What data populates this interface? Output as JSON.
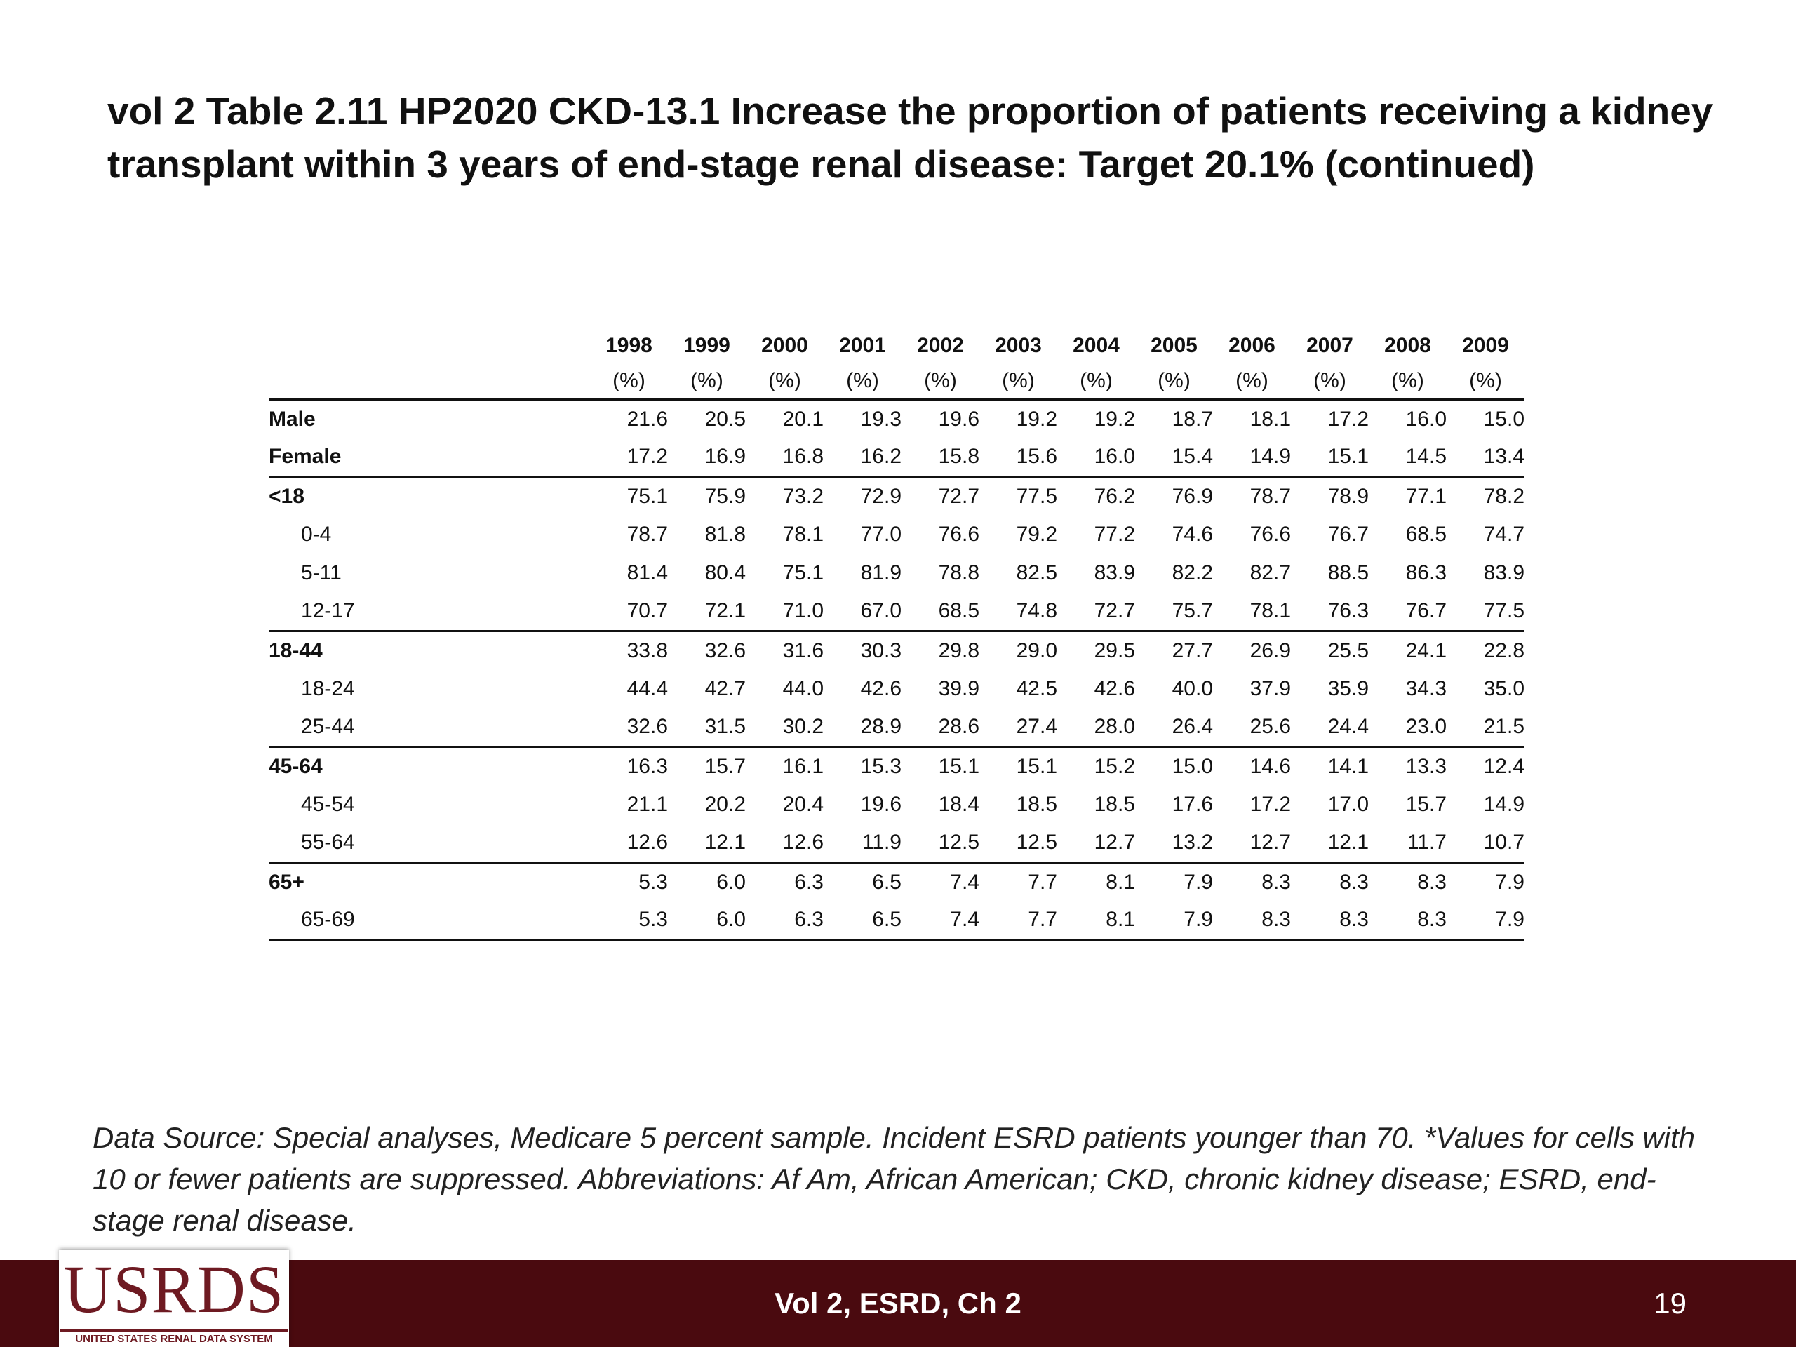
{
  "title": "vol 2 Table 2.11 HP2020 CKD-13.1 Increase the proportion of patients receiving a kidney transplant within 3 years of end-stage renal disease: Target 20.1% (continued)",
  "table": {
    "years": [
      "1998",
      "1999",
      "2000",
      "2001",
      "2002",
      "2003",
      "2004",
      "2005",
      "2006",
      "2007",
      "2008",
      "2009"
    ],
    "unit": "(%)",
    "rows": [
      {
        "label": "Male",
        "bold": true,
        "sep": false,
        "values": [
          "21.6",
          "20.5",
          "20.1",
          "19.3",
          "19.6",
          "19.2",
          "19.2",
          "18.7",
          "18.1",
          "17.2",
          "16.0",
          "15.0"
        ]
      },
      {
        "label": "Female",
        "bold": true,
        "sep": false,
        "values": [
          "17.2",
          "16.9",
          "16.8",
          "16.2",
          "15.8",
          "15.6",
          "16.0",
          "15.4",
          "14.9",
          "15.1",
          "14.5",
          "13.4"
        ]
      },
      {
        "label": "<18",
        "bold": true,
        "sep": true,
        "values": [
          "75.1",
          "75.9",
          "73.2",
          "72.9",
          "72.7",
          "77.5",
          "76.2",
          "76.9",
          "78.7",
          "78.9",
          "77.1",
          "78.2"
        ]
      },
      {
        "label": "0-4",
        "bold": false,
        "sep": false,
        "values": [
          "78.7",
          "81.8",
          "78.1",
          "77.0",
          "76.6",
          "79.2",
          "77.2",
          "74.6",
          "76.6",
          "76.7",
          "68.5",
          "74.7"
        ]
      },
      {
        "label": "5-11",
        "bold": false,
        "sep": false,
        "values": [
          "81.4",
          "80.4",
          "75.1",
          "81.9",
          "78.8",
          "82.5",
          "83.9",
          "82.2",
          "82.7",
          "88.5",
          "86.3",
          "83.9"
        ]
      },
      {
        "label": "12-17",
        "bold": false,
        "sep": false,
        "values": [
          "70.7",
          "72.1",
          "71.0",
          "67.0",
          "68.5",
          "74.8",
          "72.7",
          "75.7",
          "78.1",
          "76.3",
          "76.7",
          "77.5"
        ]
      },
      {
        "label": "18-44",
        "bold": true,
        "sep": true,
        "values": [
          "33.8",
          "32.6",
          "31.6",
          "30.3",
          "29.8",
          "29.0",
          "29.5",
          "27.7",
          "26.9",
          "25.5",
          "24.1",
          "22.8"
        ]
      },
      {
        "label": "18-24",
        "bold": false,
        "sep": false,
        "values": [
          "44.4",
          "42.7",
          "44.0",
          "42.6",
          "39.9",
          "42.5",
          "42.6",
          "40.0",
          "37.9",
          "35.9",
          "34.3",
          "35.0"
        ]
      },
      {
        "label": "25-44",
        "bold": false,
        "sep": false,
        "values": [
          "32.6",
          "31.5",
          "30.2",
          "28.9",
          "28.6",
          "27.4",
          "28.0",
          "26.4",
          "25.6",
          "24.4",
          "23.0",
          "21.5"
        ]
      },
      {
        "label": "45-64",
        "bold": true,
        "sep": true,
        "values": [
          "16.3",
          "15.7",
          "16.1",
          "15.3",
          "15.1",
          "15.1",
          "15.2",
          "15.0",
          "14.6",
          "14.1",
          "13.3",
          "12.4"
        ]
      },
      {
        "label": "45-54",
        "bold": false,
        "sep": false,
        "values": [
          "21.1",
          "20.2",
          "20.4",
          "19.6",
          "18.4",
          "18.5",
          "18.5",
          "17.6",
          "17.2",
          "17.0",
          "15.7",
          "14.9"
        ]
      },
      {
        "label": "55-64",
        "bold": false,
        "sep": false,
        "values": [
          "12.6",
          "12.1",
          "12.6",
          "11.9",
          "12.5",
          "12.5",
          "12.7",
          "13.2",
          "12.7",
          "12.1",
          "11.7",
          "10.7"
        ]
      },
      {
        "label": "65+",
        "bold": true,
        "sep": true,
        "values": [
          "5.3",
          "6.0",
          "6.3",
          "6.5",
          "7.4",
          "7.7",
          "8.1",
          "7.9",
          "8.3",
          "8.3",
          "8.3",
          "7.9"
        ]
      },
      {
        "label": "65-69",
        "bold": false,
        "sep": false,
        "values": [
          "5.3",
          "6.0",
          "6.3",
          "6.5",
          "7.4",
          "7.7",
          "8.1",
          "7.9",
          "8.3",
          "8.3",
          "8.3",
          "7.9"
        ]
      }
    ]
  },
  "source": "Data Source: Special analyses, Medicare 5 percent sample. Incident ESRD patients younger than 70. *Values for cells with 10 or fewer patients are suppressed. Abbreviations: Af Am, African American; CKD, chronic kidney disease; ESRD, end-stage renal disease.",
  "footer": {
    "logo_text": "USRDS",
    "logo_subtitle": "UNITED STATES RENAL DATA SYSTEM",
    "center_text": "Vol 2, ESRD, Ch 2",
    "page_number": "19"
  }
}
